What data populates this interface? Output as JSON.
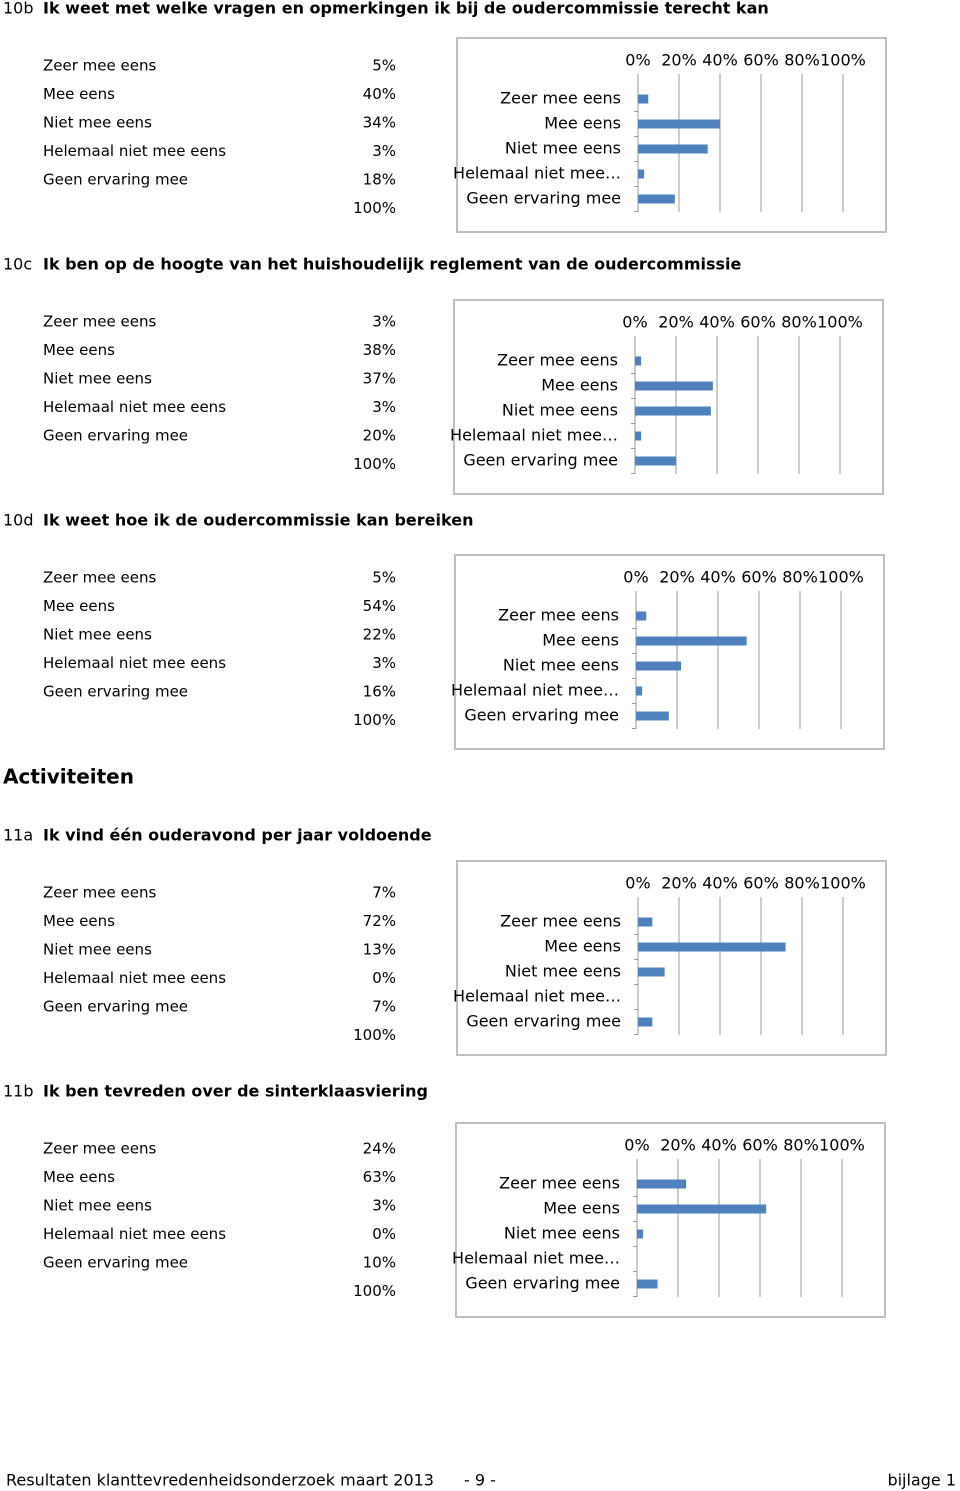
{
  "heading": "Activiteiten",
  "footer": {
    "left": "Resultaten klanttevredenheidsonderzoek maart 2013",
    "center": "- 9 -",
    "right": "bijlage 1"
  },
  "chart_data": [
    {
      "type": "bar",
      "number": "10b",
      "title": "Ik weet met welke vragen en opmerkingen ik bij de oudercommissie terecht kan",
      "categories": [
        "Zeer mee eens",
        "Mee eens",
        "Niet mee eens",
        "Helemaal niet mee eens",
        "Geen ervaring mee"
      ],
      "bar_labels": [
        "Zeer mee eens",
        "Mee eens",
        "Niet mee eens",
        "Helemaal niet mee…",
        "Geen ervaring mee"
      ],
      "values": [
        5,
        40,
        34,
        3,
        18
      ],
      "value_labels": [
        "5%",
        "40%",
        "34%",
        "3%",
        "18%"
      ],
      "total": 100,
      "total_label": "100%",
      "color": "#4f81bd",
      "xlim": [
        0,
        100
      ],
      "xticks": [
        {
          "value": 0,
          "label": "0%"
        },
        {
          "value": 20,
          "label": "20%"
        },
        {
          "value": 40,
          "label": "40%"
        },
        {
          "value": 60,
          "label": "60%"
        },
        {
          "value": 80,
          "label": "80%"
        },
        {
          "value": 100,
          "label": "100%"
        }
      ],
      "grid": true
    },
    {
      "type": "bar",
      "number": "10c",
      "title": "Ik ben op de hoogte van het huishoudelijk reglement van de oudercommissie",
      "categories": [
        "Zeer mee eens",
        "Mee eens",
        "Niet mee eens",
        "Helemaal niet mee eens",
        "Geen ervaring mee"
      ],
      "bar_labels": [
        "Zeer mee eens",
        "Mee eens",
        "Niet mee eens",
        "Helemaal niet mee…",
        "Geen ervaring mee"
      ],
      "values": [
        3,
        38,
        37,
        3,
        20
      ],
      "value_labels": [
        "3%",
        "38%",
        "37%",
        "3%",
        "20%"
      ],
      "total": 100,
      "total_label": "100%",
      "color": "#4f81bd",
      "xlim": [
        0,
        100
      ],
      "xticks": [
        {
          "value": 0,
          "label": "0%"
        },
        {
          "value": 20,
          "label": "20%"
        },
        {
          "value": 40,
          "label": "40%"
        },
        {
          "value": 60,
          "label": "60%"
        },
        {
          "value": 80,
          "label": "80%"
        },
        {
          "value": 100,
          "label": "100%"
        }
      ],
      "grid": true
    },
    {
      "type": "bar",
      "number": "10d",
      "title": "Ik weet hoe ik de oudercommissie kan bereiken",
      "categories": [
        "Zeer mee eens",
        "Mee eens",
        "Niet mee eens",
        "Helemaal niet mee eens",
        "Geen ervaring mee"
      ],
      "bar_labels": [
        "Zeer mee eens",
        "Mee eens",
        "Niet mee eens",
        "Helemaal niet mee…",
        "Geen ervaring mee"
      ],
      "values": [
        5,
        54,
        22,
        3,
        16
      ],
      "value_labels": [
        "5%",
        "54%",
        "22%",
        "3%",
        "16%"
      ],
      "total": 100,
      "total_label": "100%",
      "color": "#4f81bd",
      "xlim": [
        0,
        100
      ],
      "xticks": [
        {
          "value": 0,
          "label": "0%"
        },
        {
          "value": 20,
          "label": "20%"
        },
        {
          "value": 40,
          "label": "40%"
        },
        {
          "value": 60,
          "label": "60%"
        },
        {
          "value": 80,
          "label": "80%"
        },
        {
          "value": 100,
          "label": "100%"
        }
      ],
      "grid": true
    },
    {
      "type": "bar",
      "number": "11a",
      "title": "Ik vind één ouderavond per jaar voldoende",
      "categories": [
        "Zeer mee eens",
        "Mee eens",
        "Niet mee eens",
        "Helemaal niet mee eens",
        "Geen ervaring mee"
      ],
      "bar_labels": [
        "Zeer mee eens",
        "Mee eens",
        "Niet mee eens",
        "Helemaal niet mee…",
        "Geen ervaring mee"
      ],
      "values": [
        7,
        72,
        13,
        0,
        7
      ],
      "value_labels": [
        "7%",
        "72%",
        "13%",
        "0%",
        "7%"
      ],
      "total": 100,
      "total_label": "100%",
      "color": "#4f81bd",
      "xlim": [
        0,
        100
      ],
      "xticks": [
        {
          "value": 0,
          "label": "0%"
        },
        {
          "value": 20,
          "label": "20%"
        },
        {
          "value": 40,
          "label": "40%"
        },
        {
          "value": 60,
          "label": "60%"
        },
        {
          "value": 80,
          "label": "80%"
        },
        {
          "value": 100,
          "label": "100%"
        }
      ],
      "grid": true
    },
    {
      "type": "bar",
      "number": "11b",
      "title": "Ik ben tevreden over de sinterklaasviering",
      "categories": [
        "Zeer mee eens",
        "Mee eens",
        "Niet mee eens",
        "Helemaal niet mee eens",
        "Geen ervaring mee"
      ],
      "bar_labels": [
        "Zeer mee eens",
        "Mee eens",
        "Niet mee eens",
        "Helemaal niet mee…",
        "Geen ervaring mee"
      ],
      "values": [
        24,
        63,
        3,
        0,
        10
      ],
      "value_labels": [
        "24%",
        "63%",
        "3%",
        "0%",
        "10%"
      ],
      "total": 100,
      "total_label": "100%",
      "color": "#4f81bd",
      "xlim": [
        0,
        100
      ],
      "xticks": [
        {
          "value": 0,
          "label": "0%"
        },
        {
          "value": 20,
          "label": "20%"
        },
        {
          "value": 40,
          "label": "40%"
        },
        {
          "value": 60,
          "label": "60%"
        },
        {
          "value": 80,
          "label": "80%"
        },
        {
          "value": 100,
          "label": "100%"
        }
      ],
      "grid": true
    }
  ]
}
